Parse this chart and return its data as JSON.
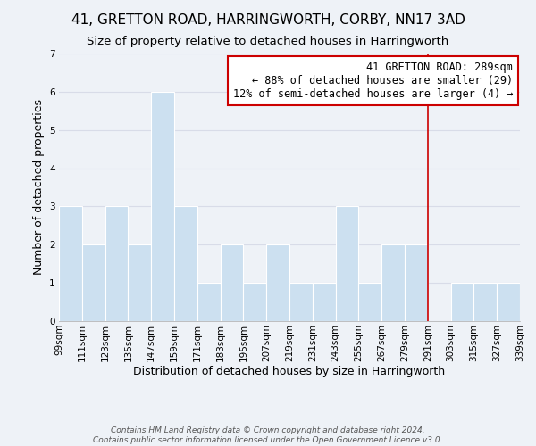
{
  "title": "41, GRETTON ROAD, HARRINGWORTH, CORBY, NN17 3AD",
  "subtitle": "Size of property relative to detached houses in Harringworth",
  "xlabel": "Distribution of detached houses by size in Harringworth",
  "ylabel": "Number of detached properties",
  "bar_edges": [
    99,
    111,
    123,
    135,
    147,
    159,
    171,
    183,
    195,
    207,
    219,
    231,
    243,
    255,
    267,
    279,
    291,
    303,
    315,
    327,
    339
  ],
  "bar_heights": [
    3,
    2,
    3,
    2,
    6,
    3,
    1,
    2,
    1,
    2,
    1,
    1,
    3,
    1,
    2,
    2,
    0,
    1,
    1,
    1
  ],
  "bar_color": "#cce0f0",
  "bar_edgecolor": "#ffffff",
  "reference_line_x": 291,
  "reference_line_color": "#cc0000",
  "ylim": [
    0,
    7
  ],
  "yticks": [
    0,
    1,
    2,
    3,
    4,
    5,
    6,
    7
  ],
  "xtick_labels": [
    "99sqm",
    "111sqm",
    "123sqm",
    "135sqm",
    "147sqm",
    "159sqm",
    "171sqm",
    "183sqm",
    "195sqm",
    "207sqm",
    "219sqm",
    "231sqm",
    "243sqm",
    "255sqm",
    "267sqm",
    "279sqm",
    "291sqm",
    "303sqm",
    "315sqm",
    "327sqm",
    "339sqm"
  ],
  "annotation_title": "41 GRETTON ROAD: 289sqm",
  "annotation_line1": "← 88% of detached houses are smaller (29)",
  "annotation_line2": "12% of semi-detached houses are larger (4) →",
  "annotation_box_color": "#ffffff",
  "annotation_box_edgecolor": "#cc0000",
  "footer_line1": "Contains HM Land Registry data © Crown copyright and database right 2024.",
  "footer_line2": "Contains public sector information licensed under the Open Government Licence v3.0.",
  "background_color": "#eef2f7",
  "title_fontsize": 11,
  "subtitle_fontsize": 9.5,
  "axis_label_fontsize": 9,
  "tick_fontsize": 7.5,
  "annotation_fontsize": 8.5,
  "footer_fontsize": 6.5,
  "grid_color": "#d8dce8",
  "grid_linewidth": 0.8
}
